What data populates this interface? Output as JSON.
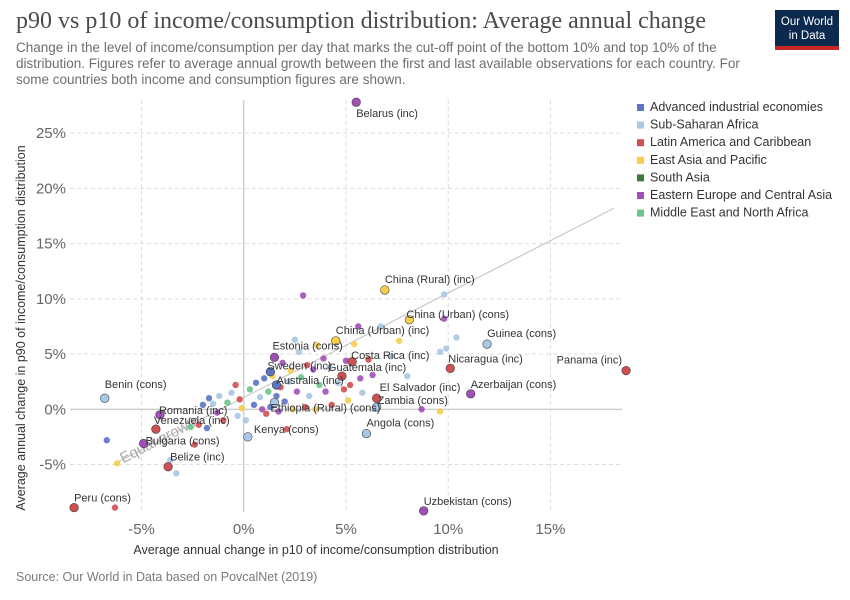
{
  "header": {
    "title": "p90 vs p10 of income/consumption distribution: Average annual change",
    "subtitle": "Change in the level of income/consumption per day that marks the cut-off point of the bottom 10% and top 10% of the distribution. Figures refer to average annual growth between the first and last available observations for each country. For some countries both income and consumption figures are shown.",
    "logo_line1": "Our World",
    "logo_line2": "in Data"
  },
  "footer": {
    "source": "Source: Our World in Data based on PovcalNet (2019)"
  },
  "colors": {
    "Advanced industrial economies": "#5b74c4",
    "Sub-Saharan Africa": "#a9c7e6",
    "Latin America and Caribbean": "#d04f53",
    "East Asia and Pacific": "#f5ce4a",
    "South Asia": "#3d7a3d",
    "Eastern Europe and Central Asia": "#a14fb8",
    "Middle East and North Africa": "#6ac48b"
  },
  "chart_data": {
    "type": "scatter",
    "title": "p90 vs p10 of income/consumption distribution: Average annual change",
    "xlabel": "Average annual change in p10 of income/consumption distribution",
    "ylabel": "Average annual change in p90 of income/consumption distribution",
    "xlim": [
      -8.5,
      18.5
    ],
    "ylim": [
      -9.3,
      28
    ],
    "x_ticks": [
      -5,
      0,
      5,
      10,
      15
    ],
    "y_ticks": [
      -5,
      0,
      5,
      10,
      15,
      20,
      25
    ],
    "x_tick_labels": [
      "-5%",
      "0%",
      "5%",
      "10%",
      "15%"
    ],
    "y_tick_labels": [
      "-5%",
      "0%",
      "5%",
      "10%",
      "15%",
      "20%",
      "25%"
    ],
    "grid": true,
    "legend_position": "right",
    "reference_line": {
      "label": "Equal growth",
      "from": [
        -6.2,
        -4.8
      ],
      "to": [
        18.1,
        18.2
      ]
    },
    "legend": [
      "Advanced industrial economies",
      "Sub-Saharan Africa",
      "Latin America and Caribbean",
      "East Asia and Pacific",
      "South Asia",
      "Eastern Europe and Central Asia",
      "Middle East and North Africa"
    ],
    "labeled_points": [
      {
        "label": "Belarus (inc)",
        "x": 5.5,
        "y": 27.8,
        "region": "Eastern Europe and Central Asia"
      },
      {
        "label": "China (Rural) (inc)",
        "x": 6.9,
        "y": 10.8,
        "region": "East Asia and Pacific"
      },
      {
        "label": "China (Urban) (cons)",
        "x": 8.1,
        "y": 8.1,
        "region": "East Asia and Pacific"
      },
      {
        "label": "China (Urban) (inc)",
        "x": 4.5,
        "y": 6.2,
        "region": "East Asia and Pacific"
      },
      {
        "label": "Guinea (cons)",
        "x": 11.9,
        "y": 5.9,
        "region": "Sub-Saharan Africa"
      },
      {
        "label": "Estonia (cons)",
        "x": 1.5,
        "y": 4.7,
        "region": "Eastern Europe and Central Asia"
      },
      {
        "label": "Costa Rica (inc)",
        "x": 5.3,
        "y": 4.3,
        "region": "Latin America and Caribbean"
      },
      {
        "label": "Nicaragua (inc)",
        "x": 10.1,
        "y": 3.7,
        "region": "Latin America and Caribbean"
      },
      {
        "label": "Panama (inc)",
        "x": 18.7,
        "y": 3.5,
        "region": "Latin America and Caribbean"
      },
      {
        "label": "Sweden (inc)",
        "x": 1.3,
        "y": 3.4,
        "region": "Advanced industrial economies"
      },
      {
        "label": "Guatemala (inc)",
        "x": 4.8,
        "y": 3.0,
        "region": "Latin America and Caribbean"
      },
      {
        "label": "Australia (inc)",
        "x": 1.6,
        "y": 2.2,
        "region": "Advanced industrial economies"
      },
      {
        "label": "Azerbaijan (cons)",
        "x": 11.1,
        "y": 1.4,
        "region": "Eastern Europe and Central Asia"
      },
      {
        "label": "El Salvador (inc)",
        "x": 6.5,
        "y": 1.0,
        "region": "Latin America and Caribbean"
      },
      {
        "label": "Benin (cons)",
        "x": -6.8,
        "y": 1.0,
        "region": "Sub-Saharan Africa"
      },
      {
        "label": "Zambia (cons)",
        "x": 6.5,
        "y": 0.2,
        "region": "Sub-Saharan Africa"
      },
      {
        "label": "Romania (inc)",
        "x": -4.1,
        "y": -0.5,
        "region": "Eastern Europe and Central Asia"
      },
      {
        "label": "Ethiopia (Rural) (cons)",
        "x": 1.5,
        "y": 0.6,
        "region": "Sub-Saharan Africa"
      },
      {
        "label": "Venezuela (inc)",
        "x": -4.3,
        "y": -1.8,
        "region": "Latin America and Caribbean"
      },
      {
        "label": "Kenya (cons)",
        "x": 0.2,
        "y": -2.5,
        "region": "Sub-Saharan Africa"
      },
      {
        "label": "Angola (cons)",
        "x": 6.0,
        "y": -2.2,
        "region": "Sub-Saharan Africa"
      },
      {
        "label": "Bulgaria (cons)",
        "x": -4.9,
        "y": -3.1,
        "region": "Eastern Europe and Central Asia"
      },
      {
        "label": "Belize (inc)",
        "x": -3.7,
        "y": -5.2,
        "region": "Latin America and Caribbean"
      },
      {
        "label": "Peru (cons)",
        "x": -8.3,
        "y": -8.9,
        "region": "Latin America and Caribbean"
      },
      {
        "label": "Uzbekistan (cons)",
        "x": 8.8,
        "y": -9.2,
        "region": "Eastern Europe and Central Asia"
      }
    ],
    "other_points": [
      {
        "x": -6.7,
        "y": -2.8,
        "region": "Advanced industrial economies"
      },
      {
        "x": -6.2,
        "y": -4.9,
        "region": "East Asia and Pacific"
      },
      {
        "x": -6.3,
        "y": -8.9,
        "region": "Latin America and Caribbean"
      },
      {
        "x": -3.3,
        "y": -5.8,
        "region": "Sub-Saharan Africa"
      },
      {
        "x": -3.6,
        "y": -4.6,
        "region": "Sub-Saharan Africa"
      },
      {
        "x": -2.4,
        "y": -3.2,
        "region": "Latin America and Caribbean"
      },
      {
        "x": -2.6,
        "y": -1.6,
        "region": "Middle East and North Africa"
      },
      {
        "x": -2.2,
        "y": -1.4,
        "region": "Latin America and Caribbean"
      },
      {
        "x": -2.0,
        "y": 0.4,
        "region": "Advanced industrial economies"
      },
      {
        "x": -1.8,
        "y": -1.7,
        "region": "Advanced industrial economies"
      },
      {
        "x": -1.7,
        "y": 1.0,
        "region": "Advanced industrial economies"
      },
      {
        "x": -1.5,
        "y": 0.5,
        "region": "Sub-Saharan Africa"
      },
      {
        "x": -1.3,
        "y": -0.3,
        "region": "Eastern Europe and Central Asia"
      },
      {
        "x": -1.2,
        "y": 1.2,
        "region": "Sub-Saharan Africa"
      },
      {
        "x": -1.0,
        "y": -1.0,
        "region": "Latin America and Caribbean"
      },
      {
        "x": -0.8,
        "y": 0.6,
        "region": "Middle East and North Africa"
      },
      {
        "x": -0.6,
        "y": 1.5,
        "region": "Sub-Saharan Africa"
      },
      {
        "x": -0.4,
        "y": 2.2,
        "region": "Latin America and Caribbean"
      },
      {
        "x": -0.3,
        "y": -0.6,
        "region": "Sub-Saharan Africa"
      },
      {
        "x": -0.2,
        "y": 0.9,
        "region": "Latin America and Caribbean"
      },
      {
        "x": -0.1,
        "y": 0.1,
        "region": "East Asia and Pacific"
      },
      {
        "x": 0.1,
        "y": -1.0,
        "region": "Sub-Saharan Africa"
      },
      {
        "x": 0.3,
        "y": 1.8,
        "region": "Middle East and North Africa"
      },
      {
        "x": 0.5,
        "y": 0.4,
        "region": "Advanced industrial economies"
      },
      {
        "x": 0.6,
        "y": 2.4,
        "region": "Advanced industrial economies"
      },
      {
        "x": 0.8,
        "y": 1.1,
        "region": "Sub-Saharan Africa"
      },
      {
        "x": 0.9,
        "y": 0.0,
        "region": "Eastern Europe and Central Asia"
      },
      {
        "x": 1.0,
        "y": 2.8,
        "region": "Advanced industrial economies"
      },
      {
        "x": 1.1,
        "y": -0.4,
        "region": "Latin America and Caribbean"
      },
      {
        "x": 1.2,
        "y": 1.6,
        "region": "Middle East and North Africa"
      },
      {
        "x": 1.3,
        "y": 0.2,
        "region": "Advanced industrial economies"
      },
      {
        "x": 1.4,
        "y": 3.0,
        "region": "East Asia and Pacific"
      },
      {
        "x": 1.6,
        "y": 1.2,
        "region": "Advanced industrial economies"
      },
      {
        "x": 1.7,
        "y": -0.2,
        "region": "Eastern Europe and Central Asia"
      },
      {
        "x": 1.8,
        "y": 2.0,
        "region": "Latin America and Caribbean"
      },
      {
        "x": 1.9,
        "y": 4.2,
        "region": "Eastern Europe and Central Asia"
      },
      {
        "x": 2.0,
        "y": 0.7,
        "region": "Advanced industrial economies"
      },
      {
        "x": 2.1,
        "y": -1.8,
        "region": "Latin America and Caribbean"
      },
      {
        "x": 2.2,
        "y": 2.5,
        "region": "Sub-Saharan Africa"
      },
      {
        "x": 2.3,
        "y": 3.5,
        "region": "East Asia and Pacific"
      },
      {
        "x": 2.4,
        "y": 0.0,
        "region": "East Asia and Pacific"
      },
      {
        "x": 2.5,
        "y": 6.3,
        "region": "Sub-Saharan Africa"
      },
      {
        "x": 2.6,
        "y": 1.6,
        "region": "Eastern Europe and Central Asia"
      },
      {
        "x": 2.7,
        "y": 5.2,
        "region": "Sub-Saharan Africa"
      },
      {
        "x": 2.8,
        "y": 2.9,
        "region": "Middle East and North Africa"
      },
      {
        "x": 2.9,
        "y": 10.3,
        "region": "Eastern Europe and Central Asia"
      },
      {
        "x": 3.0,
        "y": 0.2,
        "region": "Latin America and Caribbean"
      },
      {
        "x": 3.1,
        "y": 4.0,
        "region": "Latin America and Caribbean"
      },
      {
        "x": 3.2,
        "y": 1.2,
        "region": "Sub-Saharan Africa"
      },
      {
        "x": 3.4,
        "y": 3.6,
        "region": "Eastern Europe and Central Asia"
      },
      {
        "x": 3.5,
        "y": 0.0,
        "region": "East Asia and Pacific"
      },
      {
        "x": 3.6,
        "y": 5.8,
        "region": "East Asia and Pacific"
      },
      {
        "x": 3.7,
        "y": 2.2,
        "region": "Middle East and North Africa"
      },
      {
        "x": 3.9,
        "y": 4.6,
        "region": "Eastern Europe and Central Asia"
      },
      {
        "x": 4.0,
        "y": 1.6,
        "region": "Eastern Europe and Central Asia"
      },
      {
        "x": 4.2,
        "y": 3.8,
        "region": "Sub-Saharan Africa"
      },
      {
        "x": 4.3,
        "y": 0.4,
        "region": "Latin America and Caribbean"
      },
      {
        "x": 4.6,
        "y": 2.4,
        "region": "Sub-Saharan Africa"
      },
      {
        "x": 4.9,
        "y": 1.8,
        "region": "Latin America and Caribbean"
      },
      {
        "x": 5.0,
        "y": 4.4,
        "region": "Eastern Europe and Central Asia"
      },
      {
        "x": 5.1,
        "y": 0.8,
        "region": "East Asia and Pacific"
      },
      {
        "x": 5.2,
        "y": 2.2,
        "region": "Latin America and Caribbean"
      },
      {
        "x": 5.4,
        "y": 5.9,
        "region": "East Asia and Pacific"
      },
      {
        "x": 5.6,
        "y": 7.5,
        "region": "Eastern Europe and Central Asia"
      },
      {
        "x": 5.7,
        "y": 2.8,
        "region": "Eastern Europe and Central Asia"
      },
      {
        "x": 5.8,
        "y": 1.5,
        "region": "Sub-Saharan Africa"
      },
      {
        "x": 6.1,
        "y": 4.5,
        "region": "Latin America and Caribbean"
      },
      {
        "x": 6.3,
        "y": 3.1,
        "region": "Eastern Europe and Central Asia"
      },
      {
        "x": 6.7,
        "y": 7.5,
        "region": "Sub-Saharan Africa"
      },
      {
        "x": 7.2,
        "y": 4.8,
        "region": "Sub-Saharan Africa"
      },
      {
        "x": 7.6,
        "y": 6.2,
        "region": "East Asia and Pacific"
      },
      {
        "x": 8.0,
        "y": 3.0,
        "region": "Sub-Saharan Africa"
      },
      {
        "x": 8.7,
        "y": 0.0,
        "region": "Eastern Europe and Central Asia"
      },
      {
        "x": 9.6,
        "y": -0.2,
        "region": "East Asia and Pacific"
      },
      {
        "x": 9.6,
        "y": 5.2,
        "region": "Sub-Saharan Africa"
      },
      {
        "x": 9.8,
        "y": 8.2,
        "region": "Eastern Europe and Central Asia"
      },
      {
        "x": 9.8,
        "y": 10.4,
        "region": "Sub-Saharan Africa"
      },
      {
        "x": 9.9,
        "y": 5.5,
        "region": "Sub-Saharan Africa"
      },
      {
        "x": 10.4,
        "y": 6.5,
        "region": "Sub-Saharan Africa"
      }
    ]
  }
}
